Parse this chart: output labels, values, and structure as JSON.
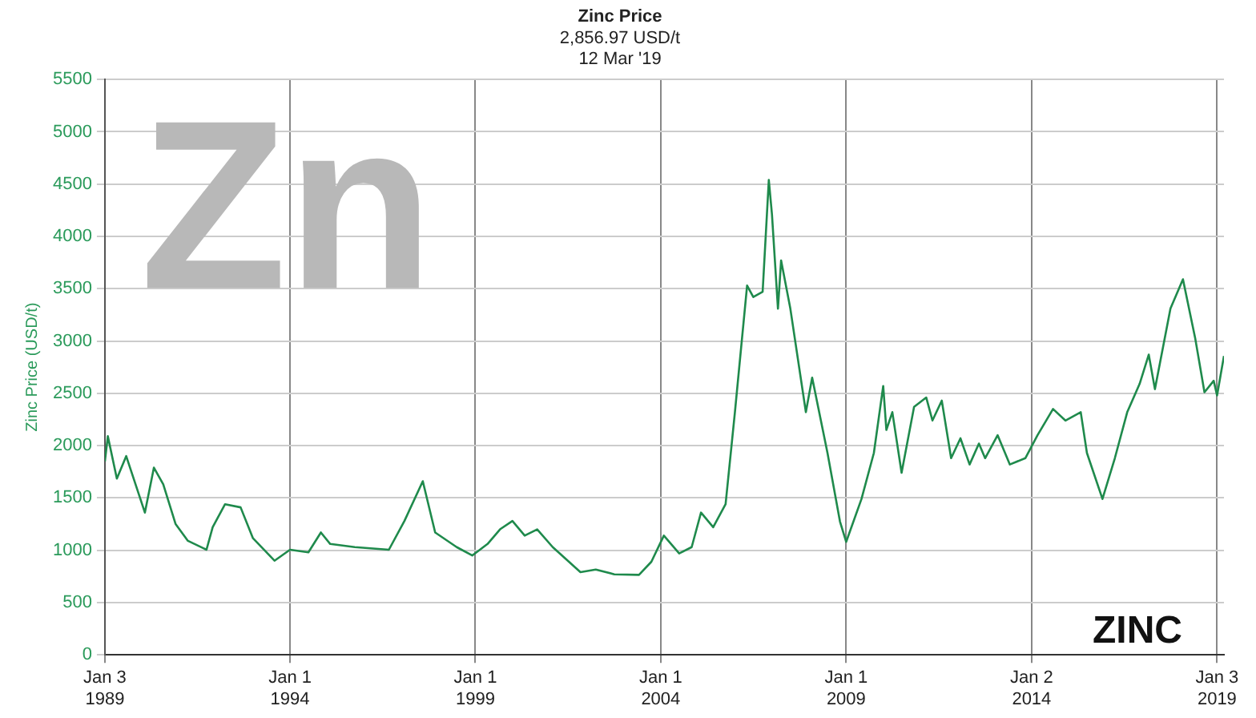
{
  "chart_data": {
    "type": "line",
    "title": "Zinc Price",
    "subtitle": "2,856.97 USD/t\n12 Mar '19",
    "ylabel": "Zinc Price (USD/t)",
    "annotations": [
      "Zn",
      "ZINC"
    ],
    "x": [
      "1989-01-03",
      "1989-02",
      "1989-05",
      "1989-08",
      "1990-02",
      "1990-05",
      "1990-08",
      "1990-12",
      "1991-04",
      "1991-10",
      "1991-12",
      "1992-04",
      "1992-09",
      "1993-01",
      "1993-08",
      "1994-01",
      "1994-07",
      "1994-11",
      "1995-02",
      "1995-10",
      "1996-09",
      "1997-02",
      "1997-08",
      "1997-12",
      "1998-07",
      "1998-12",
      "1999-05",
      "1999-09",
      "2000-01",
      "2000-05",
      "2000-09",
      "2001-02",
      "2001-11",
      "2002-04",
      "2002-10",
      "2003-06",
      "2003-10",
      "2004-02",
      "2004-07",
      "2004-11",
      "2005-02",
      "2005-06",
      "2005-10",
      "2006-01",
      "2006-05",
      "2006-07",
      "2006-10",
      "2006-12",
      "2007-01",
      "2007-03",
      "2007-04",
      "2007-07",
      "2007-12",
      "2008-02",
      "2008-07",
      "2008-11",
      "2009-01",
      "2009-06",
      "2009-10",
      "2010-01",
      "2010-02",
      "2010-04",
      "2010-07",
      "2010-11",
      "2011-03",
      "2011-05",
      "2011-08",
      "2011-11",
      "2012-02",
      "2012-05",
      "2012-08",
      "2012-10",
      "2013-02",
      "2013-06",
      "2013-11",
      "2014-03",
      "2014-08",
      "2014-12",
      "2015-05",
      "2015-07",
      "2015-12",
      "2016-04",
      "2016-08",
      "2016-12",
      "2017-03",
      "2017-05",
      "2017-10",
      "2018-02",
      "2018-06",
      "2018-09",
      "2018-12",
      "2019-01-03",
      "2019-03-12"
    ],
    "series": [
      {
        "color": "#1f8a4c",
        "values": [
          1848,
          2090,
          1685,
          1900,
          1360,
          1790,
          1630,
          1250,
          1090,
          1005,
          1220,
          1440,
          1410,
          1115,
          900,
          1005,
          980,
          1170,
          1060,
          1030,
          1005,
          1280,
          1660,
          1170,
          1030,
          950,
          1060,
          1200,
          1280,
          1140,
          1200,
          1030,
          790,
          815,
          770,
          765,
          890,
          1140,
          970,
          1030,
          1360,
          1220,
          1440,
          2320,
          3530,
          3420,
          3470,
          4540,
          4210,
          3310,
          3770,
          3310,
          2320,
          2650,
          1930,
          1275,
          1080,
          1490,
          1930,
          2570,
          2150,
          2320,
          1740,
          2370,
          2460,
          2240,
          2430,
          1880,
          2070,
          1820,
          2020,
          1880,
          2100,
          1820,
          1880,
          2100,
          2350,
          2240,
          2320,
          1930,
          1490,
          1880,
          2320,
          2590,
          2870,
          2540,
          3310,
          3590,
          3030,
          2510,
          2620,
          2480,
          2857
        ]
      }
    ],
    "xlim": [
      "1989-01-03",
      "2019-03-12"
    ],
    "xticks": [
      {
        "value": "1989-01-03",
        "label": "Jan 3\n1989"
      },
      {
        "value": "1994-01-01",
        "label": "Jan 1\n1994"
      },
      {
        "value": "1999-01-01",
        "label": "Jan 1\n1999"
      },
      {
        "value": "2004-01-01",
        "label": "Jan 1\n2004"
      },
      {
        "value": "2009-01-01",
        "label": "Jan 1\n2009"
      },
      {
        "value": "2014-01-02",
        "label": "Jan 2\n2014"
      },
      {
        "value": "2019-01-03",
        "label": "Jan 3\n2019"
      }
    ],
    "ylim": [
      0,
      5500
    ],
    "yticks": [
      0,
      500,
      1000,
      1500,
      2000,
      2500,
      3000,
      3500,
      4000,
      4500,
      5000,
      5500
    ],
    "grid": true,
    "legend": false,
    "marker": "none",
    "line_style": "solid"
  }
}
